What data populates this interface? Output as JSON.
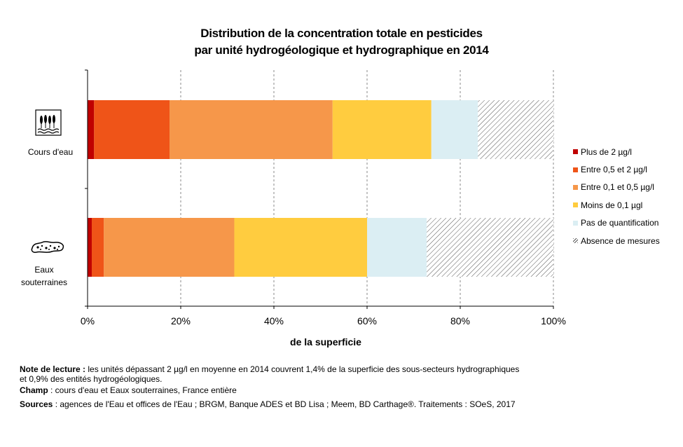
{
  "title": {
    "line1": "Distribution de la concentration totale en pesticides",
    "line2": "par unité hydrogéologique et hydrographique en 2014"
  },
  "chart_data": {
    "type": "bar",
    "orientation": "horizontal",
    "stacked": true,
    "percent": true,
    "categories": [
      "Cours d'eau",
      "Eaux souterraines"
    ],
    "series": [
      {
        "name": "Plus de 2 µg/l",
        "color": "#c00000",
        "values": [
          1.4,
          0.9
        ]
      },
      {
        "name": "Entre 0,5 et 2 µg/l",
        "color": "#ef5418",
        "values": [
          16.2,
          2.6
        ]
      },
      {
        "name": "Entre 0,1 et 0,5 µg/l",
        "color": "#f6974a",
        "values": [
          35.0,
          28.0
        ]
      },
      {
        "name": "Moins de 0,1 µgl",
        "color": "#ffcc3f",
        "values": [
          21.2,
          28.5
        ]
      },
      {
        "name": "Pas de quantification",
        "color": "#dbeef3",
        "values": [
          10.0,
          12.8
        ]
      },
      {
        "name": "Absence de mesures",
        "color": "hatched",
        "values": [
          16.2,
          27.2
        ]
      }
    ],
    "xticks": [
      "0%",
      "20%",
      "40%",
      "60%",
      "80%",
      "100%"
    ],
    "xlim": [
      0,
      100
    ],
    "xlabel": "de la superficie",
    "grid": "vertical dashed",
    "legend_position": "right"
  },
  "categories_display": {
    "cours": "Cours d'eau",
    "eaux_line1": "Eaux",
    "eaux_line2": "souterraines"
  },
  "icons": {
    "cours": "river-icon",
    "eaux": "groundwater-icon"
  },
  "notes": {
    "lecture_label": "Note de lecture :",
    "lecture_text1": "les unités dépassant 2 µg/l en moyenne en 2014 couvrent  1,4% de la superficie des sous-secteurs hydrographiques",
    "lecture_text2": "et 0,9% des entités hydrogéologiques.",
    "champ_label": "Champ",
    "champ_text": ": cours d'eau  et Eaux souterraines,  France entière",
    "sources_label": "Sources",
    "sources_text": ": agences de l'Eau et offices de l'Eau ; BRGM, Banque  ADES et BD Lisa ; Meem, BD Carthage®. Traitements  : SOeS, 2017"
  }
}
